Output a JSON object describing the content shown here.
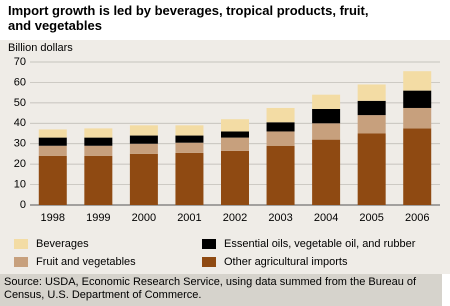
{
  "chart_data": {
    "type": "stacked_bar",
    "title": "Import growth is led by beverages, tropical products, fruit, and vegetables",
    "y_label": "Billion dollars",
    "source": "Source: USDA, Economic Research Service, using data summed from the Bureau of Census, U.S. Department of  Commerce.",
    "categories": [
      "1998",
      "1999",
      "2000",
      "2001",
      "2002",
      "2003",
      "2004",
      "2005",
      "2006"
    ],
    "series": [
      {
        "name": "Other agricultural imports",
        "color": "#8f4a12",
        "values": [
          24,
          24,
          25,
          25.5,
          26.5,
          29,
          32,
          35,
          37.5
        ]
      },
      {
        "name": "Fruit and vegetables",
        "color": "#c7a07d",
        "values": [
          5,
          5,
          5,
          5,
          6.5,
          7,
          8,
          9,
          10
        ]
      },
      {
        "name": "Essential oils, vegetable oil, and rubber",
        "color": "#000000",
        "values": [
          4,
          4,
          4,
          3.5,
          3,
          4.5,
          7,
          7,
          8.5
        ]
      },
      {
        "name": "Beverages",
        "color": "#f3dca4",
        "values": [
          4,
          4.5,
          5,
          5,
          6,
          7,
          7,
          8,
          9.5
        ]
      }
    ],
    "ylim": [
      0,
      70
    ],
    "yticks": [
      0,
      10,
      20,
      30,
      40,
      50,
      60,
      70
    ],
    "grid": true
  }
}
